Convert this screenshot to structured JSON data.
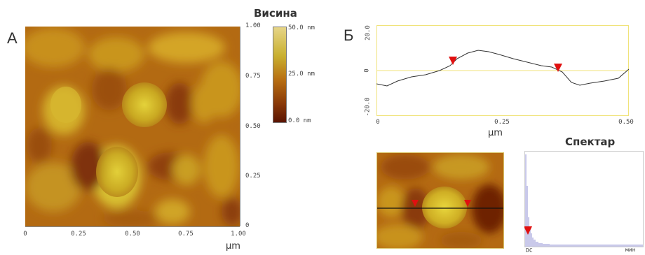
{
  "panel_a": {
    "letter": "А",
    "colorbar_title": "Висина",
    "colorbar_labels": [
      "50.0 nm",
      "25.0 nm",
      "0.0 nm"
    ],
    "x_ticks": [
      "0",
      "0.25",
      "0.50",
      "0.75",
      "1.00"
    ],
    "y_ticks": [
      "1.00",
      "0.75",
      "0.50",
      "0.25",
      "0"
    ],
    "x_unit": "μm"
  },
  "panel_b": {
    "letter": "Б",
    "profile_y_ticks": [
      "20.0",
      "0",
      "-20.0"
    ],
    "profile_x_ticks": [
      "0",
      "0.25",
      "0.50"
    ],
    "profile_x_unit": "μm",
    "spectrum_title": "Спектар",
    "spectrum_x_left": "DC",
    "spectrum_x_right": "мин"
  },
  "colors": {
    "afm_dark": "#7a2a06",
    "afm_mid": "#b86f12",
    "afm_bright": "#e6d23a",
    "frame_yellow": "#f0e37a",
    "marker_red": "#e01010",
    "spectrum_bar": "#c9c9ea"
  }
}
